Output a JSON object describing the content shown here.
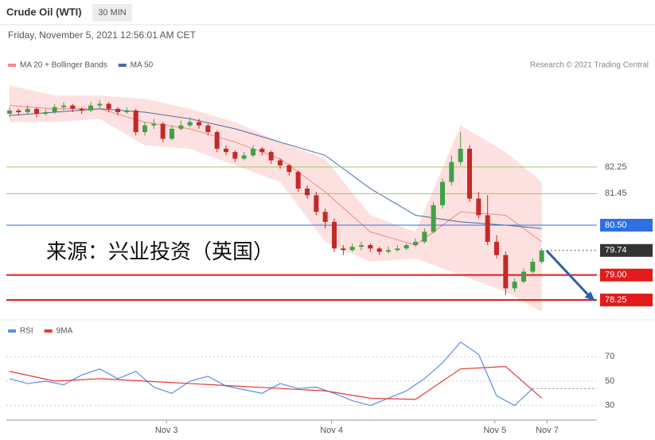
{
  "chart_data": [
    {
      "type": "candlestick",
      "title": "Crude Oil (WTI)",
      "timeframe": "30 MIN",
      "date": "Friday, November 5, 2021 12:56:01 AM CET",
      "credit": "Research © 2021 Trading Central",
      "watermark": "来源：兴业投资（英国）",
      "xlim": [
        0,
        60
      ],
      "ylim": [
        77.7,
        85
      ],
      "up_color": "#43a047",
      "down_color": "#c62828",
      "candles": [
        [
          83.85,
          84.05,
          83.75,
          83.95
        ],
        [
          83.95,
          84.0,
          83.8,
          83.9
        ],
        [
          83.9,
          84.1,
          83.85,
          84.0
        ],
        [
          84.0,
          84.05,
          83.75,
          83.85
        ],
        [
          83.85,
          84.0,
          83.8,
          83.9
        ],
        [
          83.9,
          84.15,
          83.85,
          84.05
        ],
        [
          84.05,
          84.2,
          83.95,
          84.1
        ],
        [
          84.1,
          84.15,
          83.9,
          84.0
        ],
        [
          84.0,
          84.05,
          83.85,
          83.95
        ],
        [
          83.95,
          84.2,
          83.9,
          84.1
        ],
        [
          84.1,
          84.25,
          84.0,
          84.15
        ],
        [
          84.15,
          84.2,
          83.9,
          84.0
        ],
        [
          84.0,
          84.05,
          83.8,
          83.9
        ],
        [
          83.9,
          84.05,
          83.85,
          83.95
        ],
        [
          83.95,
          84.0,
          83.2,
          83.3
        ],
        [
          83.3,
          83.6,
          83.2,
          83.5
        ],
        [
          83.5,
          83.7,
          83.4,
          83.55
        ],
        [
          83.55,
          83.6,
          83.0,
          83.1
        ],
        [
          83.1,
          83.5,
          83.05,
          83.4
        ],
        [
          83.4,
          83.65,
          83.35,
          83.5
        ],
        [
          83.5,
          83.75,
          83.45,
          83.6
        ],
        [
          83.6,
          83.7,
          83.4,
          83.5
        ],
        [
          83.5,
          83.55,
          83.2,
          83.3
        ],
        [
          83.3,
          83.35,
          82.7,
          82.8
        ],
        [
          82.8,
          82.9,
          82.6,
          82.7
        ],
        [
          82.7,
          82.75,
          82.4,
          82.5
        ],
        [
          82.5,
          82.7,
          82.45,
          82.6
        ],
        [
          82.6,
          82.9,
          82.55,
          82.8
        ],
        [
          82.8,
          82.85,
          82.6,
          82.7
        ],
        [
          82.7,
          82.75,
          82.35,
          82.45
        ],
        [
          82.45,
          82.5,
          82.2,
          82.3
        ],
        [
          82.3,
          82.35,
          82.0,
          82.1
        ],
        [
          82.1,
          82.15,
          81.5,
          81.6
        ],
        [
          81.6,
          81.7,
          81.3,
          81.4
        ],
        [
          81.4,
          81.5,
          80.8,
          80.9
        ],
        [
          80.9,
          81.0,
          80.4,
          80.6
        ],
        [
          80.6,
          80.7,
          79.7,
          79.8
        ],
        [
          79.8,
          79.9,
          79.6,
          79.75
        ],
        [
          79.75,
          79.95,
          79.7,
          79.85
        ],
        [
          79.85,
          80.0,
          79.75,
          79.9
        ],
        [
          79.9,
          79.95,
          79.7,
          79.8
        ],
        [
          79.8,
          79.85,
          79.6,
          79.7
        ],
        [
          79.7,
          79.85,
          79.65,
          79.75
        ],
        [
          79.75,
          79.9,
          79.7,
          79.8
        ],
        [
          79.8,
          79.95,
          79.75,
          79.9
        ],
        [
          79.9,
          80.1,
          79.85,
          80.0
        ],
        [
          80.0,
          80.4,
          79.95,
          80.3
        ],
        [
          80.3,
          81.2,
          80.25,
          81.1
        ],
        [
          81.1,
          81.9,
          81.0,
          81.8
        ],
        [
          81.8,
          82.6,
          81.7,
          82.4
        ],
        [
          82.4,
          83.3,
          82.3,
          82.8
        ],
        [
          82.8,
          82.9,
          81.2,
          81.3
        ],
        [
          81.3,
          81.5,
          80.7,
          80.8
        ],
        [
          80.8,
          81.4,
          79.9,
          80.0
        ],
        [
          80.0,
          80.2,
          79.5,
          79.6
        ],
        [
          79.6,
          79.7,
          78.4,
          78.6
        ],
        [
          78.6,
          78.9,
          78.5,
          78.8
        ],
        [
          78.8,
          79.2,
          78.75,
          79.1
        ],
        [
          79.1,
          79.5,
          79.05,
          79.4
        ],
        [
          79.4,
          79.8,
          79.35,
          79.74
        ]
      ],
      "series": [
        {
          "name": "MA 20 + Bollinger Bands",
          "color": "#f28b8b",
          "band_color": "#fde0e0",
          "x": [
            0,
            5,
            10,
            15,
            20,
            25,
            30,
            35,
            40,
            45,
            50,
            55,
            59
          ],
          "values": [
            84.1,
            84.0,
            84.0,
            83.6,
            83.4,
            83.0,
            82.5,
            81.5,
            80.3,
            79.9,
            80.9,
            80.8,
            80.0
          ],
          "upper": [
            84.7,
            84.4,
            84.4,
            84.3,
            84.0,
            83.6,
            83.0,
            82.5,
            80.8,
            80.3,
            83.5,
            82.7,
            81.8
          ],
          "lower": [
            83.6,
            83.6,
            83.7,
            82.9,
            82.8,
            82.3,
            81.8,
            80.0,
            79.4,
            79.5,
            79.0,
            78.5,
            77.9
          ]
        },
        {
          "name": "MA 50",
          "color": "#4a6aa5",
          "x": [
            0,
            5,
            10,
            15,
            20,
            25,
            30,
            35,
            40,
            45,
            50,
            55,
            59
          ],
          "values": [
            83.8,
            83.9,
            84.0,
            83.9,
            83.7,
            83.4,
            83.0,
            82.6,
            81.6,
            80.8,
            80.6,
            80.5,
            80.4
          ]
        }
      ],
      "levels": [
        {
          "value": 82.25,
          "color": "#9ccc65",
          "text_color": "#555",
          "boxed": false,
          "dashed": false
        },
        {
          "value": 81.45,
          "color": "#9ccc65",
          "text_color": "#555",
          "boxed": false,
          "dashed": false
        },
        {
          "value": {
            "value": 80.5,
            "label": "80.50"
          },
          "color": "#2f6fe4",
          "text_color": "#fff",
          "boxed": true,
          "dashed": false
        },
        {
          "value": 79.74,
          "color": "#333333",
          "text_color": "#fff",
          "boxed": true,
          "dashed": true
        },
        {
          "value": {
            "value": 79,
            "label": "79.00"
          },
          "color": "#e31b1b",
          "text_color": "#fff",
          "boxed": true,
          "dashed": false
        },
        {
          "value": 78.25,
          "color": "#e31b1b",
          "text_color": "#fff",
          "boxed": true,
          "dashed": false
        }
      ]
    },
    {
      "type": "line",
      "xlim": [
        0,
        60
      ],
      "ylim": [
        20,
        95
      ],
      "yticks": [
        30,
        50,
        70
      ],
      "grid": true,
      "xticks": [
        {
          "value": 17.4,
          "label": "Nov 3"
        },
        {
          "value": 35.7,
          "label": "Nov 4"
        },
        {
          "value": 53.8,
          "label": "Nov 5"
        },
        {
          "value": 59.6,
          "label": "Nov 7"
        }
      ],
      "series": [
        {
          "name": "RSI",
          "color": "#5b8def",
          "x": [
            0,
            2,
            4,
            6,
            8,
            10,
            12,
            14,
            16,
            18,
            20,
            22,
            24,
            26,
            28,
            30,
            32,
            34,
            36,
            38,
            40,
            42,
            44,
            46,
            48,
            50,
            52,
            54,
            56,
            58
          ],
          "values": [
            52,
            48,
            50,
            47,
            55,
            60,
            52,
            58,
            45,
            40,
            50,
            54,
            46,
            43,
            40,
            48,
            44,
            45,
            40,
            34,
            30,
            36,
            42,
            52,
            65,
            82,
            72,
            38,
            30,
            44
          ]
        },
        {
          "name": "9MA",
          "color": "#e53935",
          "x": [
            0,
            5,
            10,
            15,
            20,
            25,
            30,
            35,
            40,
            45,
            50,
            55,
            59
          ],
          "values": [
            58,
            50,
            52,
            50,
            48,
            46,
            44,
            42,
            36,
            35,
            60,
            62,
            36
          ]
        }
      ]
    }
  ]
}
